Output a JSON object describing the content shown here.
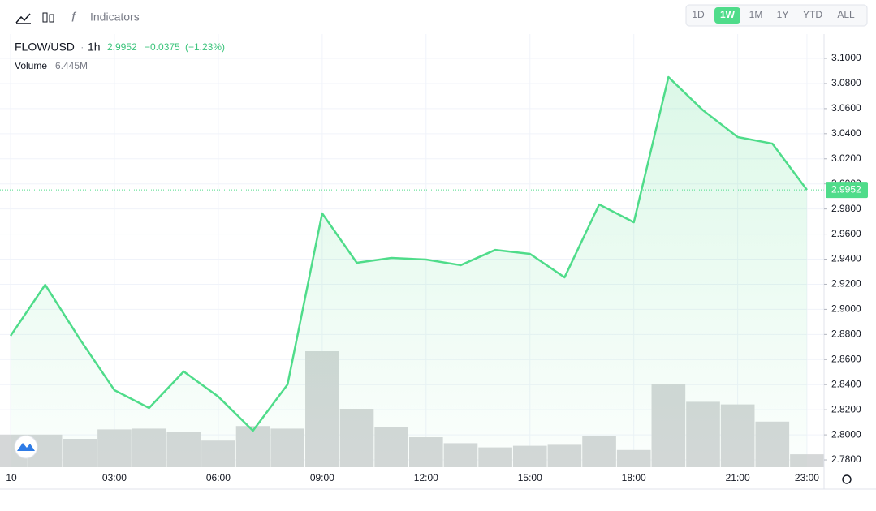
{
  "toolbar": {
    "indicators": "Indicators",
    "ranges": [
      "1D",
      "1W",
      "1M",
      "1Y",
      "YTD",
      "ALL"
    ],
    "active_range": "1W"
  },
  "header": {
    "symbol": "FLOW/USD",
    "interval": "1h",
    "last": "2.9952",
    "change": "−0.0375",
    "change_pct": "(−1.23%)"
  },
  "chart_data": {
    "type": "line",
    "categories": [
      "10",
      null,
      null,
      "03:00",
      null,
      null,
      "06:00",
      null,
      null,
      "09:00",
      null,
      null,
      "12:00",
      null,
      null,
      "15:00",
      null,
      null,
      "18:00",
      null,
      null,
      "21:00",
      null,
      "23:00"
    ],
    "series": [
      {
        "name": "FLOW/USD",
        "color": "#4fdc8a",
        "values": [
          2.8789,
          2.9196,
          2.8763,
          2.8356,
          2.8214,
          2.8505,
          2.8304,
          2.8033,
          2.8401,
          2.9765,
          2.9371,
          2.941,
          2.9397,
          2.9352,
          2.9474,
          2.9442,
          2.9255,
          2.9836,
          2.9694,
          3.0851,
          3.0586,
          3.0373,
          3.0321,
          2.9952
        ]
      },
      {
        "name": "Volume",
        "type": "bar",
        "axis": "y2",
        "color": "#d5d7d8",
        "values": [
          16.3,
          16.3,
          14.2,
          18.9,
          19.3,
          17.6,
          13.3,
          20.6,
          19.3,
          58.0,
          29.2,
          20.2,
          15.0,
          12.0,
          9.9,
          10.7,
          11.2,
          15.5,
          8.6,
          41.7,
          32.7,
          31.4,
          22.8,
          6.445
        ],
        "value_labels": [
          null,
          null,
          null,
          null,
          null,
          null,
          null,
          null,
          null,
          null,
          null,
          null,
          null,
          null,
          null,
          null,
          null,
          null,
          null,
          null,
          null,
          null,
          null,
          "6.445M"
        ]
      }
    ],
    "ylim": [
      2.7742,
      3.1194
    ],
    "yticks": [
      {
        "value": 2.78,
        "label": "2.7800"
      },
      {
        "value": 2.8,
        "label": "2.8000"
      },
      {
        "value": 2.82,
        "label": "2.8200"
      },
      {
        "value": 2.84,
        "label": "2.8400"
      },
      {
        "value": 2.86,
        "label": "2.8600"
      },
      {
        "value": 2.88,
        "label": "2.8800"
      },
      {
        "value": 2.9,
        "label": "2.9000"
      },
      {
        "value": 2.92,
        "label": "2.9200"
      },
      {
        "value": 2.94,
        "label": "2.9400"
      },
      {
        "value": 2.96,
        "label": "2.9600"
      },
      {
        "value": 2.98,
        "label": "2.9800"
      },
      {
        "value": 3.0,
        "label": "3.0000"
      },
      {
        "value": 3.02,
        "label": "3.0200"
      },
      {
        "value": 3.04,
        "label": "3.0400"
      },
      {
        "value": 3.06,
        "label": "3.0600"
      },
      {
        "value": 3.08,
        "label": "3.0800"
      },
      {
        "value": 3.1,
        "label": "3.1000"
      }
    ],
    "y2lim": [
      0,
      216.6
    ],
    "grid": true
  }
}
